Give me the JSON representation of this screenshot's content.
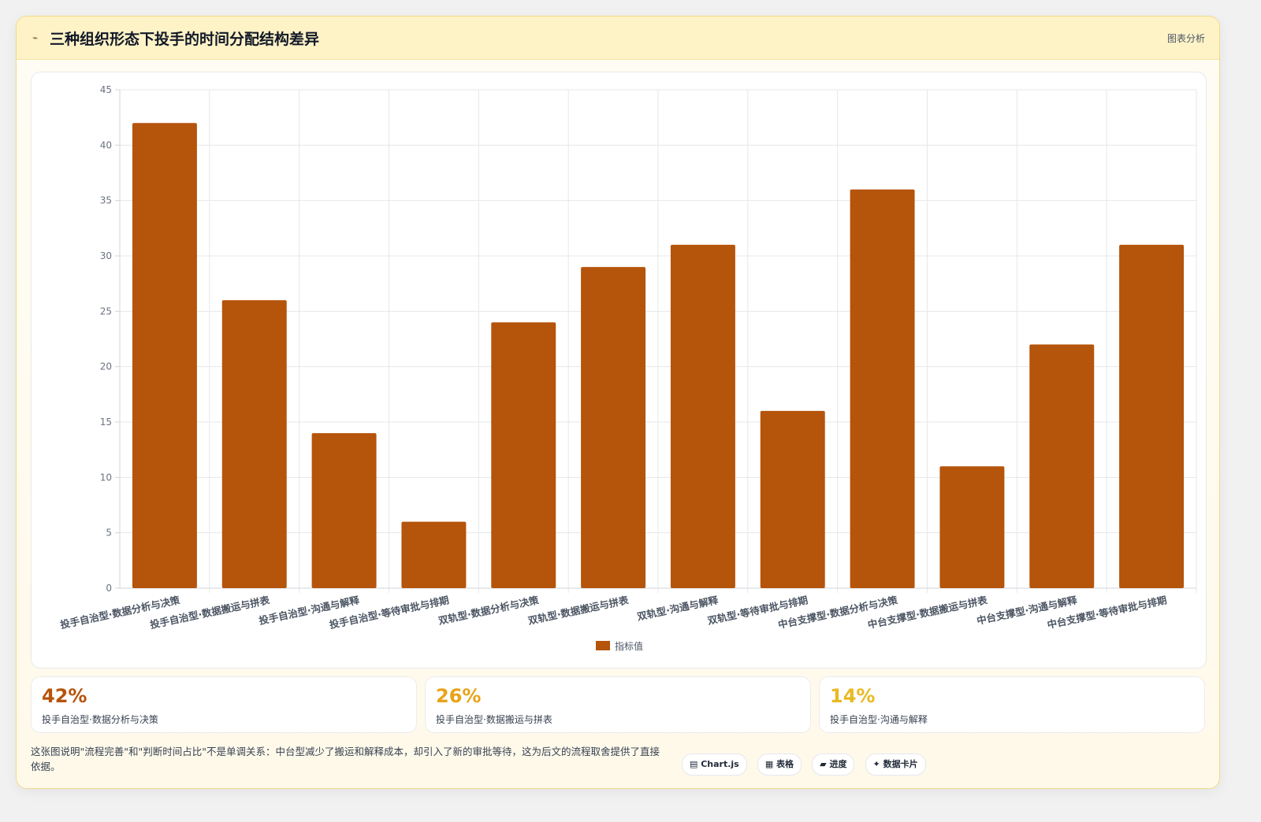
{
  "header": {
    "icon": "chart-icon",
    "title": "三种组织形态下投手的时间分配结构差异",
    "tag": "图表分析"
  },
  "colors": {
    "bar": "#b5540b",
    "grid": "#e5e7eb",
    "stat_1": "#b5540b",
    "stat_2": "#e8a317",
    "stat_3": "#e9b922"
  },
  "chart_data": {
    "type": "bar",
    "categories": [
      "投手自治型·数据分析与决策",
      "投手自治型·数据搬运与拼表",
      "投手自治型·沟通与解释",
      "投手自治型·等待审批与排期",
      "双轨型·数据分析与决策",
      "双轨型·数据搬运与拼表",
      "双轨型·沟通与解释",
      "双轨型·等待审批与排期",
      "中台支撑型·数据分析与决策",
      "中台支撑型·数据搬运与拼表",
      "中台支撑型·沟通与解释",
      "中台支撑型·等待审批与排期"
    ],
    "series": [
      {
        "name": "指标值",
        "values": [
          42,
          26,
          14,
          6,
          24,
          29,
          31,
          16,
          36,
          11,
          22,
          31
        ]
      }
    ],
    "ylim": [
      0,
      45
    ],
    "yticks": [
      0,
      5,
      10,
      15,
      20,
      25,
      30,
      35,
      40,
      45
    ],
    "grid": true,
    "legend": "bottom"
  },
  "stats": [
    {
      "value": "42%",
      "label": "投手自治型·数据分析与决策"
    },
    {
      "value": "26%",
      "label": "投手自治型·数据搬运与拼表"
    },
    {
      "value": "14%",
      "label": "投手自治型·沟通与解释"
    }
  ],
  "note": "这张图说明\"流程完善\"和\"判断时间占比\"不是单调关系：中台型减少了搬运和解释成本，却引入了新的审批等待，这为后文的流程取舍提供了直接依据。",
  "tags": [
    "▤ Chart.js",
    "▦ 表格",
    "▰ 进度",
    "✦ 数据卡片"
  ]
}
